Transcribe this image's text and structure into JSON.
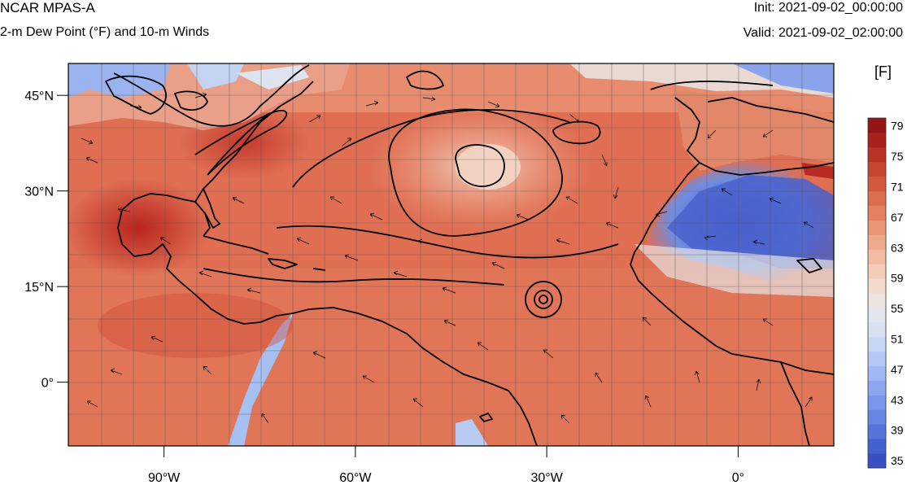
{
  "header": {
    "model": "NCAR MPAS-A",
    "field": "2-m Dew Point (°F) and 10-m Winds",
    "init": "Init: 2021-09-02_00:00:00",
    "valid": "Valid: 2021-09-02_02:00:00"
  },
  "map": {
    "region": "North Atlantic",
    "lon_range": [
      -105,
      15
    ],
    "lat_range": [
      -10,
      50
    ],
    "lon_ticks": [
      {
        "value": -90,
        "label": "90°W"
      },
      {
        "value": -60,
        "label": "60°W"
      },
      {
        "value": -30,
        "label": "30°W"
      },
      {
        "value": 0,
        "label": "0°"
      }
    ],
    "lat_ticks": [
      {
        "value": 45,
        "label": "45°N"
      },
      {
        "value": 30,
        "label": "30°N"
      },
      {
        "value": 15,
        "label": "15°N"
      },
      {
        "value": 0,
        "label": "0°"
      }
    ],
    "gridlines": true,
    "features": [
      "filled dew point",
      "10-m wind vectors",
      "pressure contours",
      "coastlines"
    ]
  },
  "colorbar": {
    "unit": "[F]",
    "labels": [
      "79",
      "75",
      "71",
      "67",
      "63",
      "59",
      "55",
      "51",
      "47",
      "43",
      "39",
      "35"
    ],
    "levels": [
      35,
      37,
      39,
      41,
      43,
      45,
      47,
      49,
      51,
      53,
      55,
      57,
      59,
      61,
      63,
      65,
      67,
      69,
      71,
      73,
      75,
      77,
      79,
      81
    ],
    "colors": [
      "#3a4fc2",
      "#4461d0",
      "#5374db",
      "#6586e3",
      "#7897ea",
      "#8ca7ef",
      "#a0b8f3",
      "#b4c8f5",
      "#c7d6f5",
      "#d8e1f1",
      "#e3e6ec",
      "#ece5de",
      "#f1dccd",
      "#f3cdb8",
      "#f2bca2",
      "#efa98b",
      "#ea9575",
      "#e48160",
      "#dc6d4e",
      "#d25a3e",
      "#c64631",
      "#b93326",
      "#a8221d",
      "#951417"
    ]
  }
}
